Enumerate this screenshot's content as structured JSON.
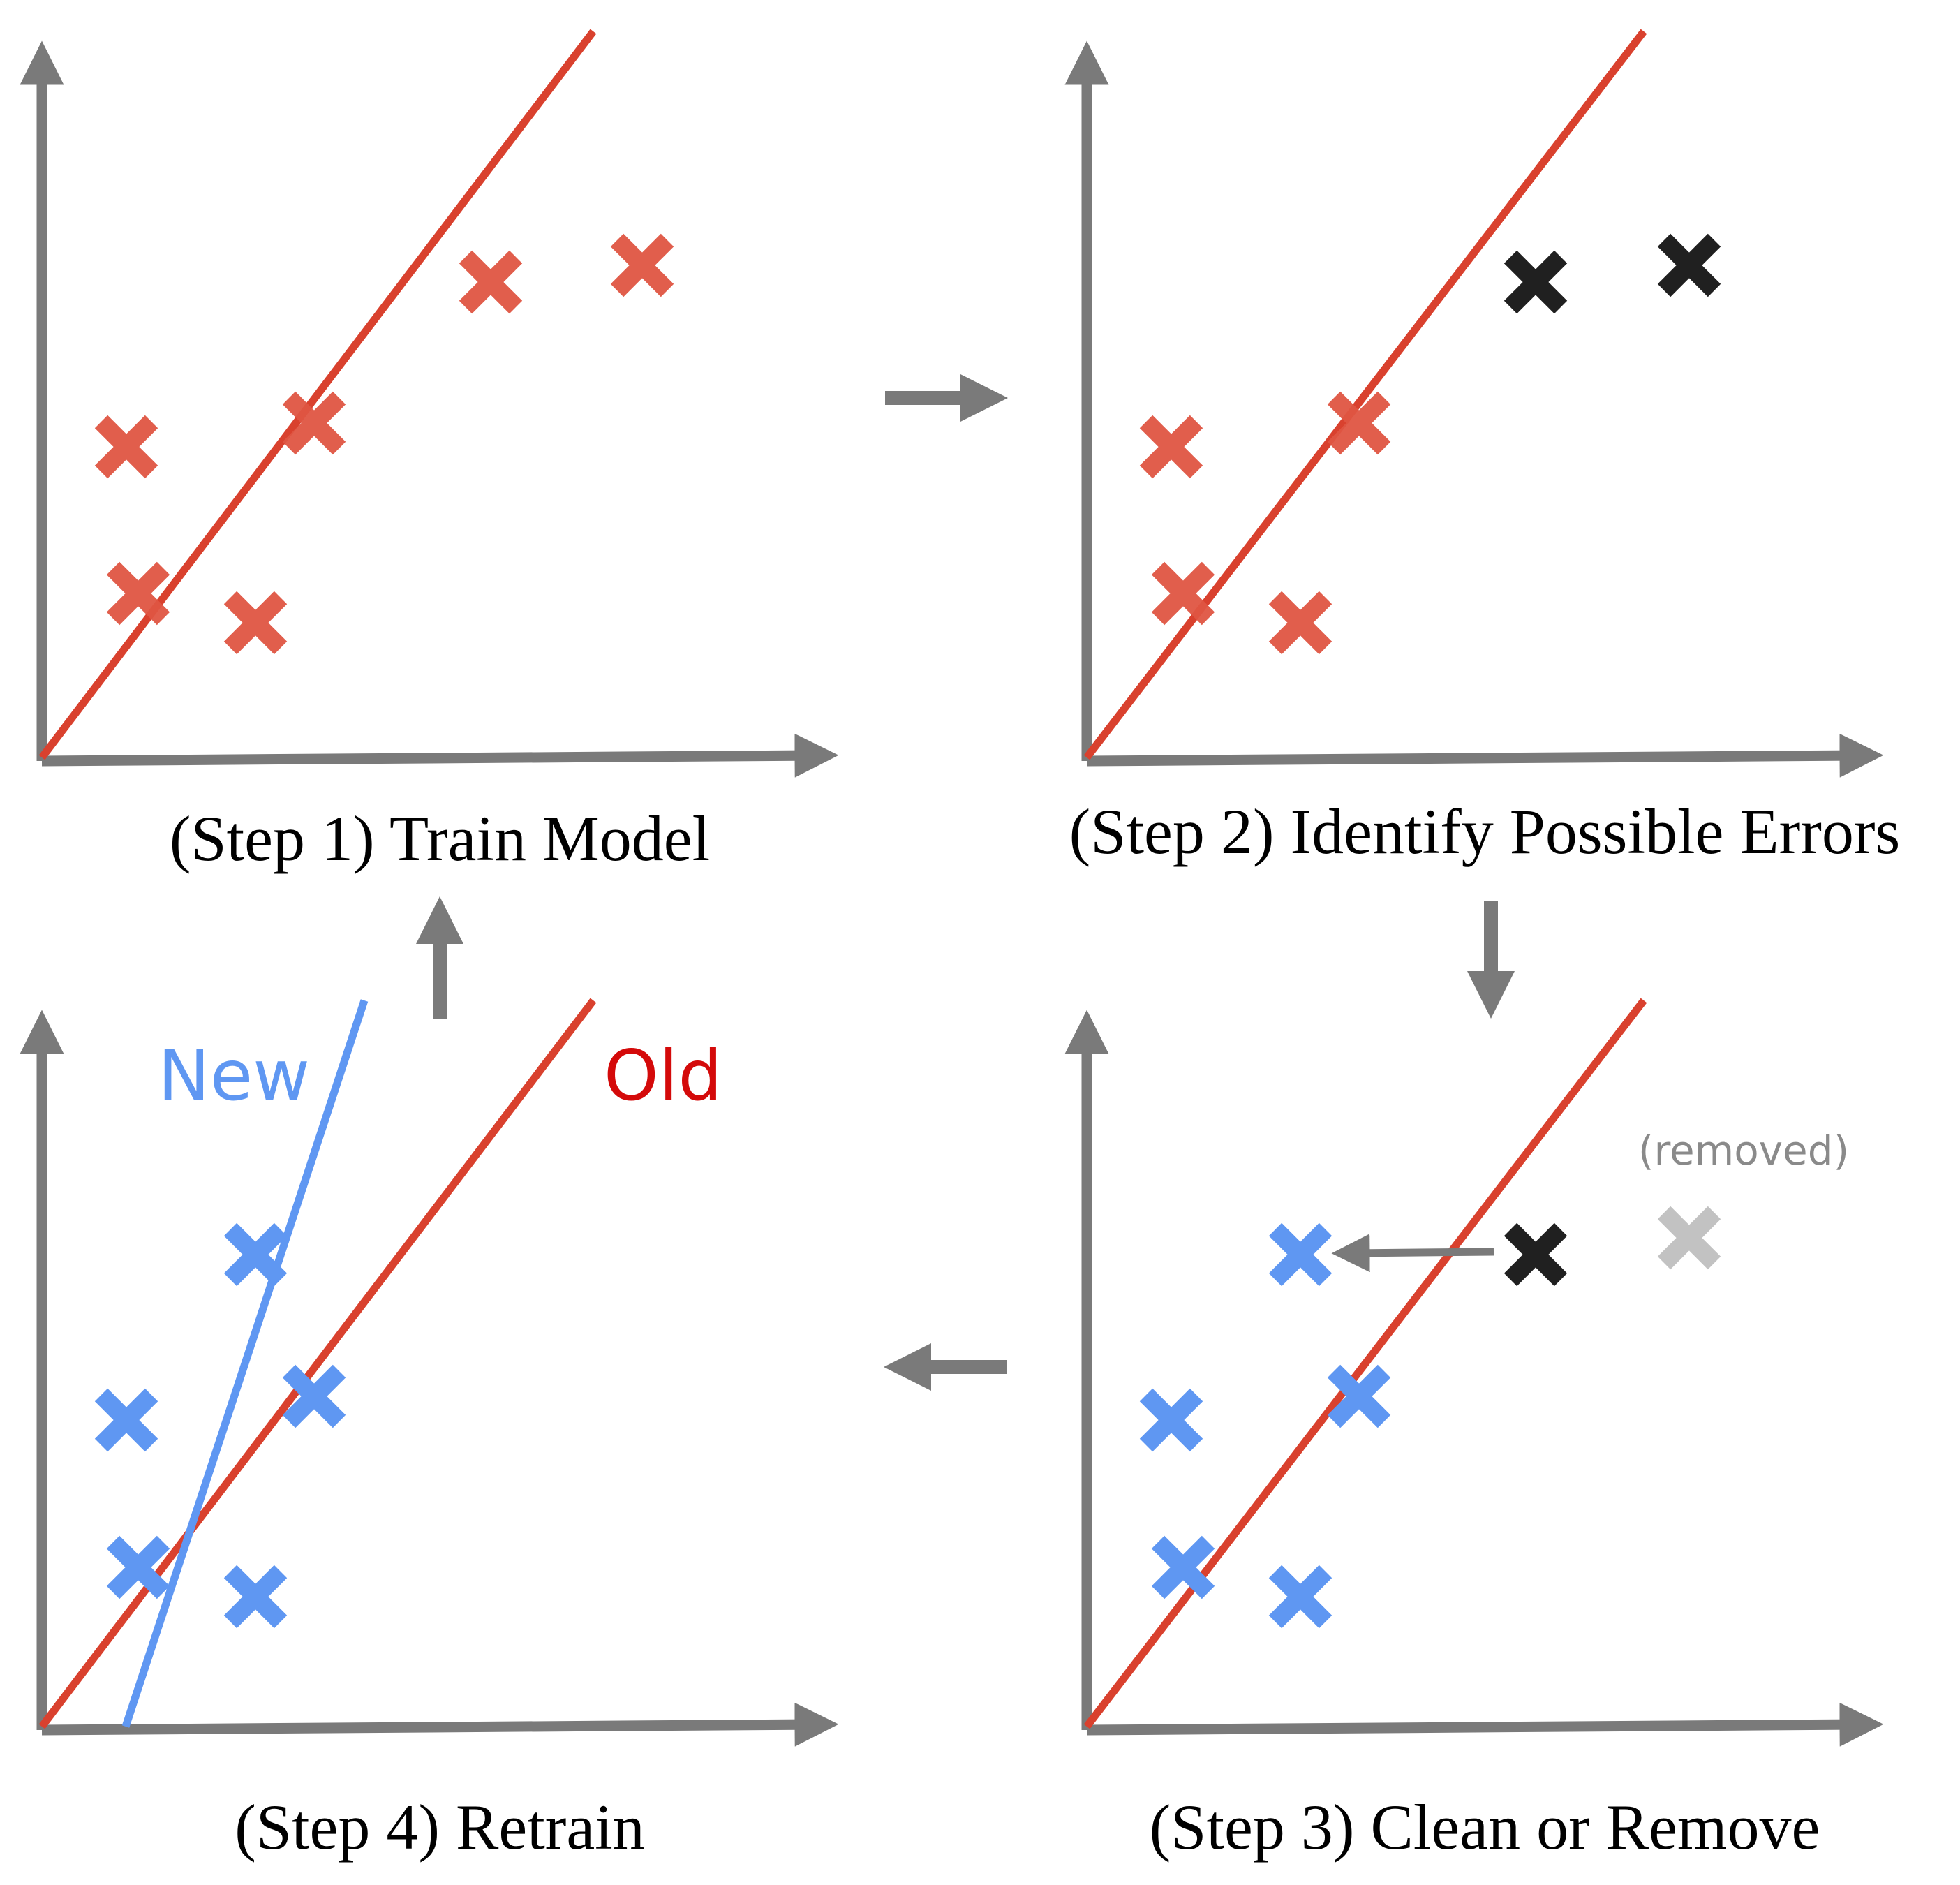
{
  "colors": {
    "axis": "#7a7a7a",
    "flow_arrow": "#7a7a7a",
    "fit_line_old": "#d9412e",
    "fit_line_new": "#5f97f2",
    "point_red": "#e05643",
    "point_blue": "#5f97f2",
    "point_black": "#202020",
    "point_removed": "#c2c2c2",
    "label_old": "#d40a0a",
    "label_new": "#5f97f2"
  },
  "panels": {
    "step1": {
      "caption": "(Step 1) Train Model"
    },
    "step2": {
      "caption": "(Step 2) Identify Possible Errors"
    },
    "step3": {
      "caption": "(Step 3) Clean or Remove",
      "removed_label": "(removed)"
    },
    "step4": {
      "caption": "(Step 4) Retrain",
      "label_new": "New",
      "label_old": "Old"
    }
  }
}
